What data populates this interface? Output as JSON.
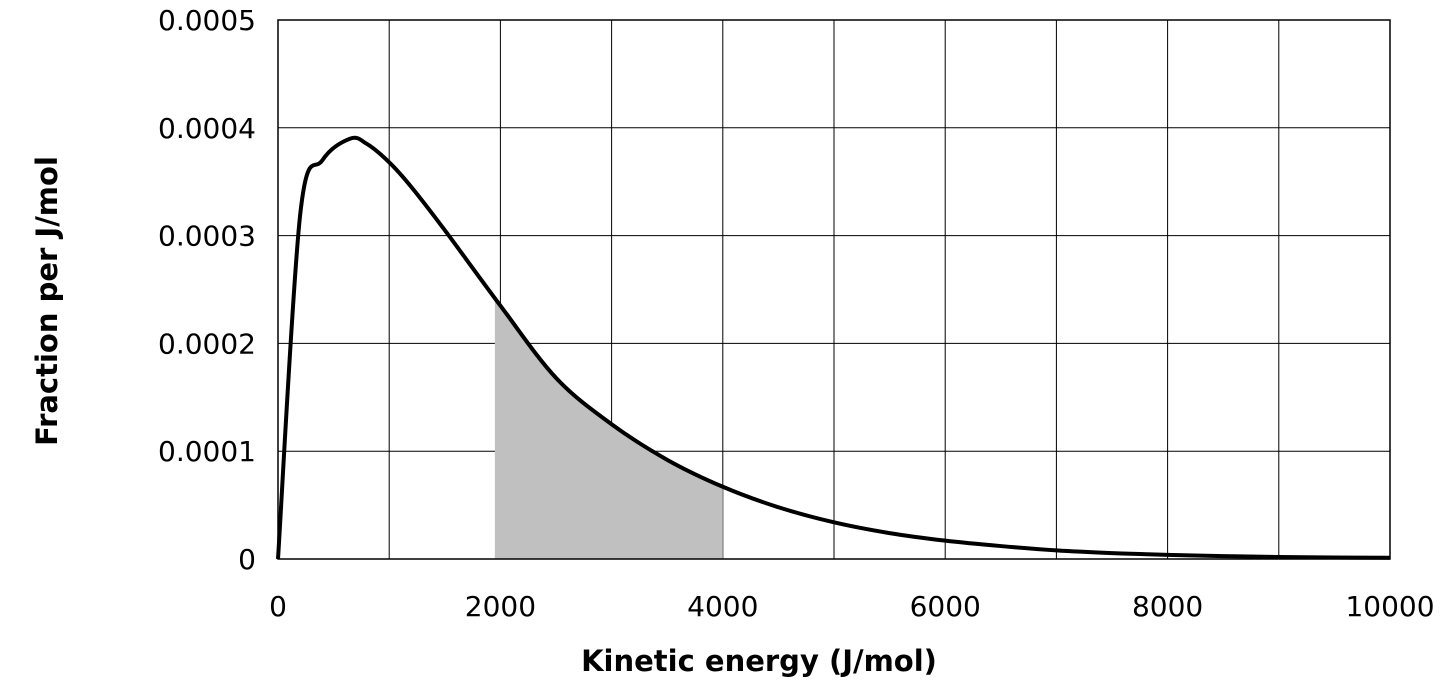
{
  "chart_data": {
    "type": "area",
    "title": "",
    "xlabel": "Kinetic energy (J/mol)",
    "ylabel": "Fraction per J/mol",
    "xlim": [
      0,
      10000
    ],
    "ylim": [
      0,
      0.0005
    ],
    "x_ticks": [
      0,
      1000,
      2000,
      3000,
      4000,
      5000,
      6000,
      7000,
      8000,
      9000,
      10000
    ],
    "x_tick_labels": [
      "0",
      "",
      "2000",
      "",
      "4000",
      "",
      "6000",
      "",
      "8000",
      "",
      "10000"
    ],
    "y_ticks": [
      0,
      0.0001,
      0.0002,
      0.0003,
      0.0004,
      0.0005
    ],
    "y_tick_labels": [
      "0",
      "0.0001",
      "0.0002",
      "0.0003",
      "0.0004",
      "0.0005"
    ],
    "grid": true,
    "legend": "none",
    "series": [
      {
        "color": "#000000",
        "x": [
          0,
          200,
          400,
          650,
          800,
          1000,
          1200,
          1500,
          2000,
          2500,
          3000,
          3500,
          4000,
          4500,
          5000,
          5500,
          6000,
          6500,
          7000,
          7500,
          8000,
          8500,
          9000,
          9500,
          10000
        ],
        "y": [
          0,
          0.00032,
          0.00037,
          0.00039,
          0.000385,
          0.000368,
          0.000345,
          0.000305,
          0.000235,
          0.000168,
          0.000125,
          9.2e-05,
          6.7e-05,
          4.8e-05,
          3.4e-05,
          2.4e-05,
          1.7e-05,
          1.2e-05,
          8e-06,
          5.5e-06,
          3.8e-06,
          2.7e-06,
          1.9e-06,
          1.4e-06,
          1.1e-06
        ]
      }
    ],
    "shaded_region": {
      "x_range": [
        1950,
        4000
      ],
      "color": "#c0c0c0"
    }
  }
}
